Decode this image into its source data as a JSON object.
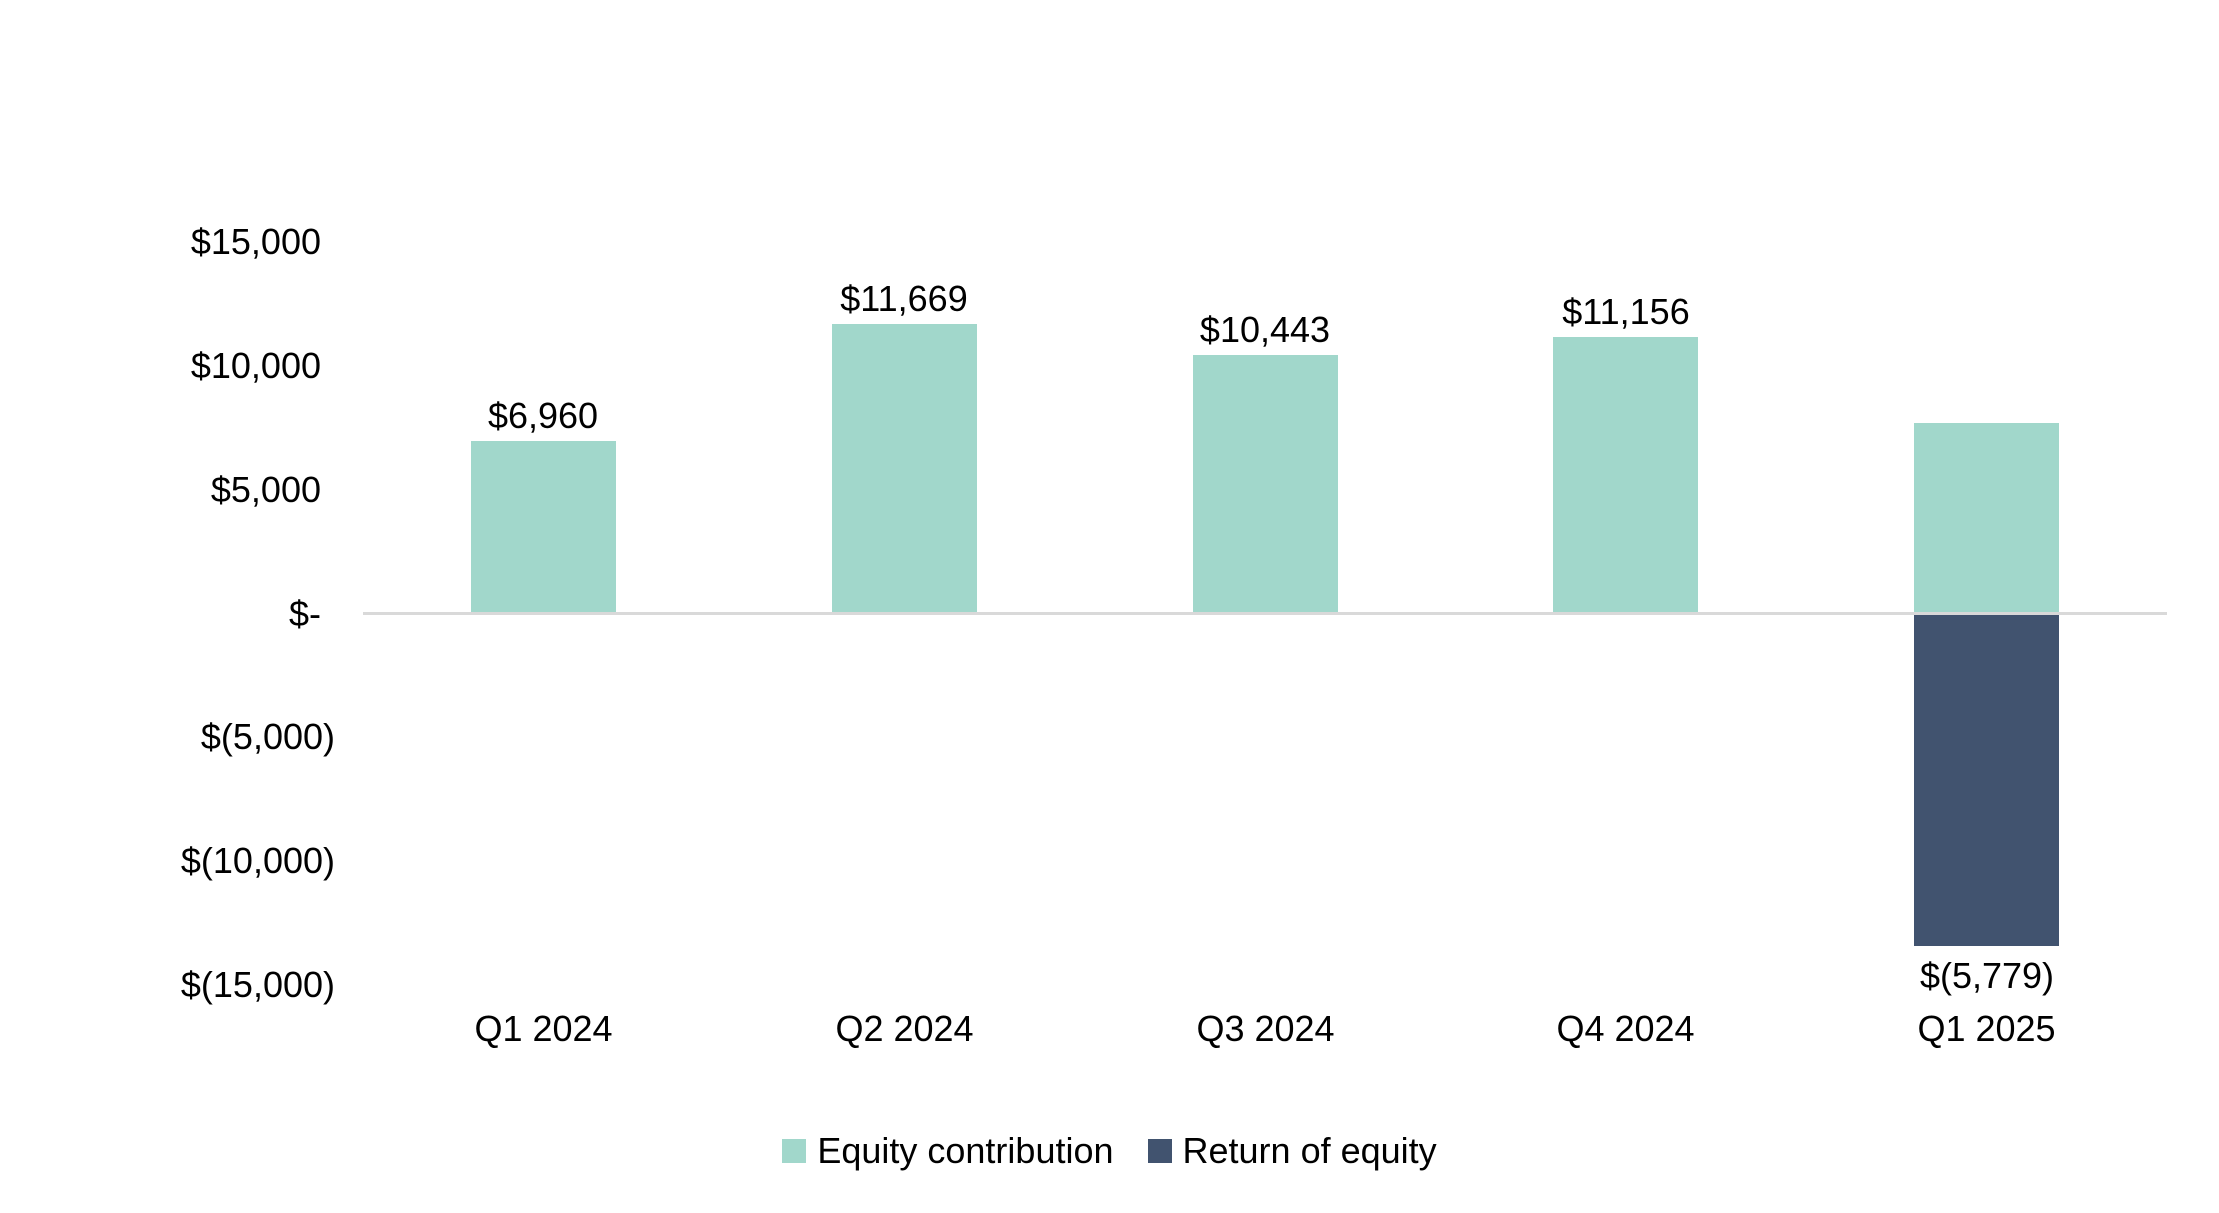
{
  "chart_data": {
    "type": "bar",
    "stacked": true,
    "title": "",
    "xlabel": "",
    "ylabel": "",
    "grid": false,
    "categories": [
      "Q1 2024",
      "Q2 2024",
      "Q3 2024",
      "Q4 2024",
      "Q1 2025"
    ],
    "series": [
      {
        "name": "Equity contribution",
        "color": "#A1D7CB",
        "values": [
          6960,
          11669,
          10443,
          11156,
          7660
        ]
      },
      {
        "name": "Return of equity",
        "color": "#41536F",
        "values": [
          0,
          0,
          0,
          0,
          -13440
        ]
      }
    ],
    "data_labels": [
      {
        "text": "$6,960",
        "position": "above"
      },
      {
        "text": "$11,669",
        "position": "above"
      },
      {
        "text": "$10,443",
        "position": "above"
      },
      {
        "text": "$11,156",
        "position": "above"
      },
      {
        "text": "$(5,779)",
        "position": "below"
      }
    ],
    "y_ticks": [
      {
        "value": 15000,
        "label": "$15,000"
      },
      {
        "value": 10000,
        "label": "$10,000"
      },
      {
        "value": 5000,
        "label": "$5,000"
      },
      {
        "value": 0,
        "label": "$-"
      },
      {
        "value": -5000,
        "label": "$(5,000)"
      },
      {
        "value": -10000,
        "label": "$(10,000)"
      },
      {
        "value": -15000,
        "label": "$(15,000)"
      }
    ],
    "ylim": [
      -15000,
      15000
    ],
    "axis_line_color": "#D9D9D9",
    "text_color": "#000000",
    "legend_position": "bottom",
    "legend": [
      {
        "label": "Equity contribution",
        "color": "#A1D7CB"
      },
      {
        "label": "Return of equity",
        "color": "#41536F"
      }
    ]
  }
}
